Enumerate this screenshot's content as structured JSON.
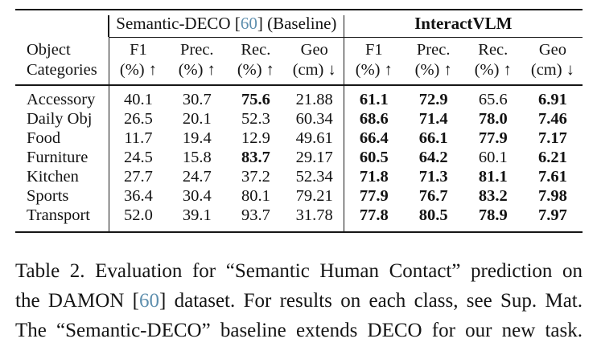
{
  "colors": {
    "background": "#ffffff",
    "text": "#131313",
    "rule": "#161616",
    "citation_blue": "#5e8fae"
  },
  "table": {
    "corner_header": {
      "line1": "Object",
      "line2": "Categories"
    },
    "groups": [
      {
        "label_pre": "Semantic-DECO [",
        "citation": "60",
        "label_post": "] (Baseline)",
        "bold": false
      },
      {
        "label": "InteractVLM",
        "bold": true
      }
    ],
    "columns": [
      {
        "metric": "F1",
        "unit": "(%) ↑"
      },
      {
        "metric": "Prec.",
        "unit": "(%) ↑"
      },
      {
        "metric": "Rec.",
        "unit": "(%) ↑"
      },
      {
        "metric": "Geo",
        "unit": "(cm) ↓"
      },
      {
        "metric": "F1",
        "unit": "(%) ↑"
      },
      {
        "metric": "Prec.",
        "unit": "(%) ↑"
      },
      {
        "metric": "Rec.",
        "unit": "(%) ↑"
      },
      {
        "metric": "Geo",
        "unit": "(cm) ↓"
      }
    ],
    "rows": [
      {
        "category": "Accessory",
        "values": [
          "40.1",
          "30.7",
          "75.6",
          "21.88",
          "61.1",
          "72.9",
          "65.6",
          "6.91"
        ],
        "bold": [
          false,
          false,
          true,
          false,
          true,
          true,
          false,
          true
        ]
      },
      {
        "category": "Daily Obj",
        "values": [
          "26.5",
          "20.1",
          "52.3",
          "60.34",
          "68.6",
          "71.4",
          "78.0",
          "7.46"
        ],
        "bold": [
          false,
          false,
          false,
          false,
          true,
          true,
          true,
          true
        ]
      },
      {
        "category": "Food",
        "values": [
          "11.7",
          "19.4",
          "12.9",
          "49.61",
          "66.4",
          "66.1",
          "77.9",
          "7.17"
        ],
        "bold": [
          false,
          false,
          false,
          false,
          true,
          true,
          true,
          true
        ]
      },
      {
        "category": "Furniture",
        "values": [
          "24.5",
          "15.8",
          "83.7",
          "29.17",
          "60.5",
          "64.2",
          "60.1",
          "6.21"
        ],
        "bold": [
          false,
          false,
          true,
          false,
          true,
          true,
          false,
          true
        ]
      },
      {
        "category": "Kitchen",
        "values": [
          "27.7",
          "24.7",
          "37.2",
          "52.34",
          "71.8",
          "71.3",
          "81.1",
          "7.61"
        ],
        "bold": [
          false,
          false,
          false,
          false,
          true,
          true,
          true,
          true
        ]
      },
      {
        "category": "Sports",
        "values": [
          "36.4",
          "30.4",
          "80.1",
          "79.21",
          "77.9",
          "76.7",
          "83.2",
          "7.98"
        ],
        "bold": [
          false,
          false,
          false,
          false,
          true,
          true,
          true,
          true
        ]
      },
      {
        "category": "Transport",
        "values": [
          "52.0",
          "39.1",
          "93.7",
          "31.78",
          "77.8",
          "80.5",
          "78.9",
          "7.97"
        ],
        "bold": [
          false,
          false,
          false,
          false,
          true,
          true,
          true,
          true
        ]
      }
    ]
  },
  "caption": {
    "lines": [
      {
        "text": "Table 2. Evaluation for “Semantic Human Contact” prediction on"
      },
      {
        "pre": "the DAMON [",
        "citation": "60",
        "post": "] dataset. For results on each class, see Sup. Mat."
      },
      {
        "text": "The “Semantic-DECO” baseline extends DECO for our new task."
      }
    ]
  }
}
